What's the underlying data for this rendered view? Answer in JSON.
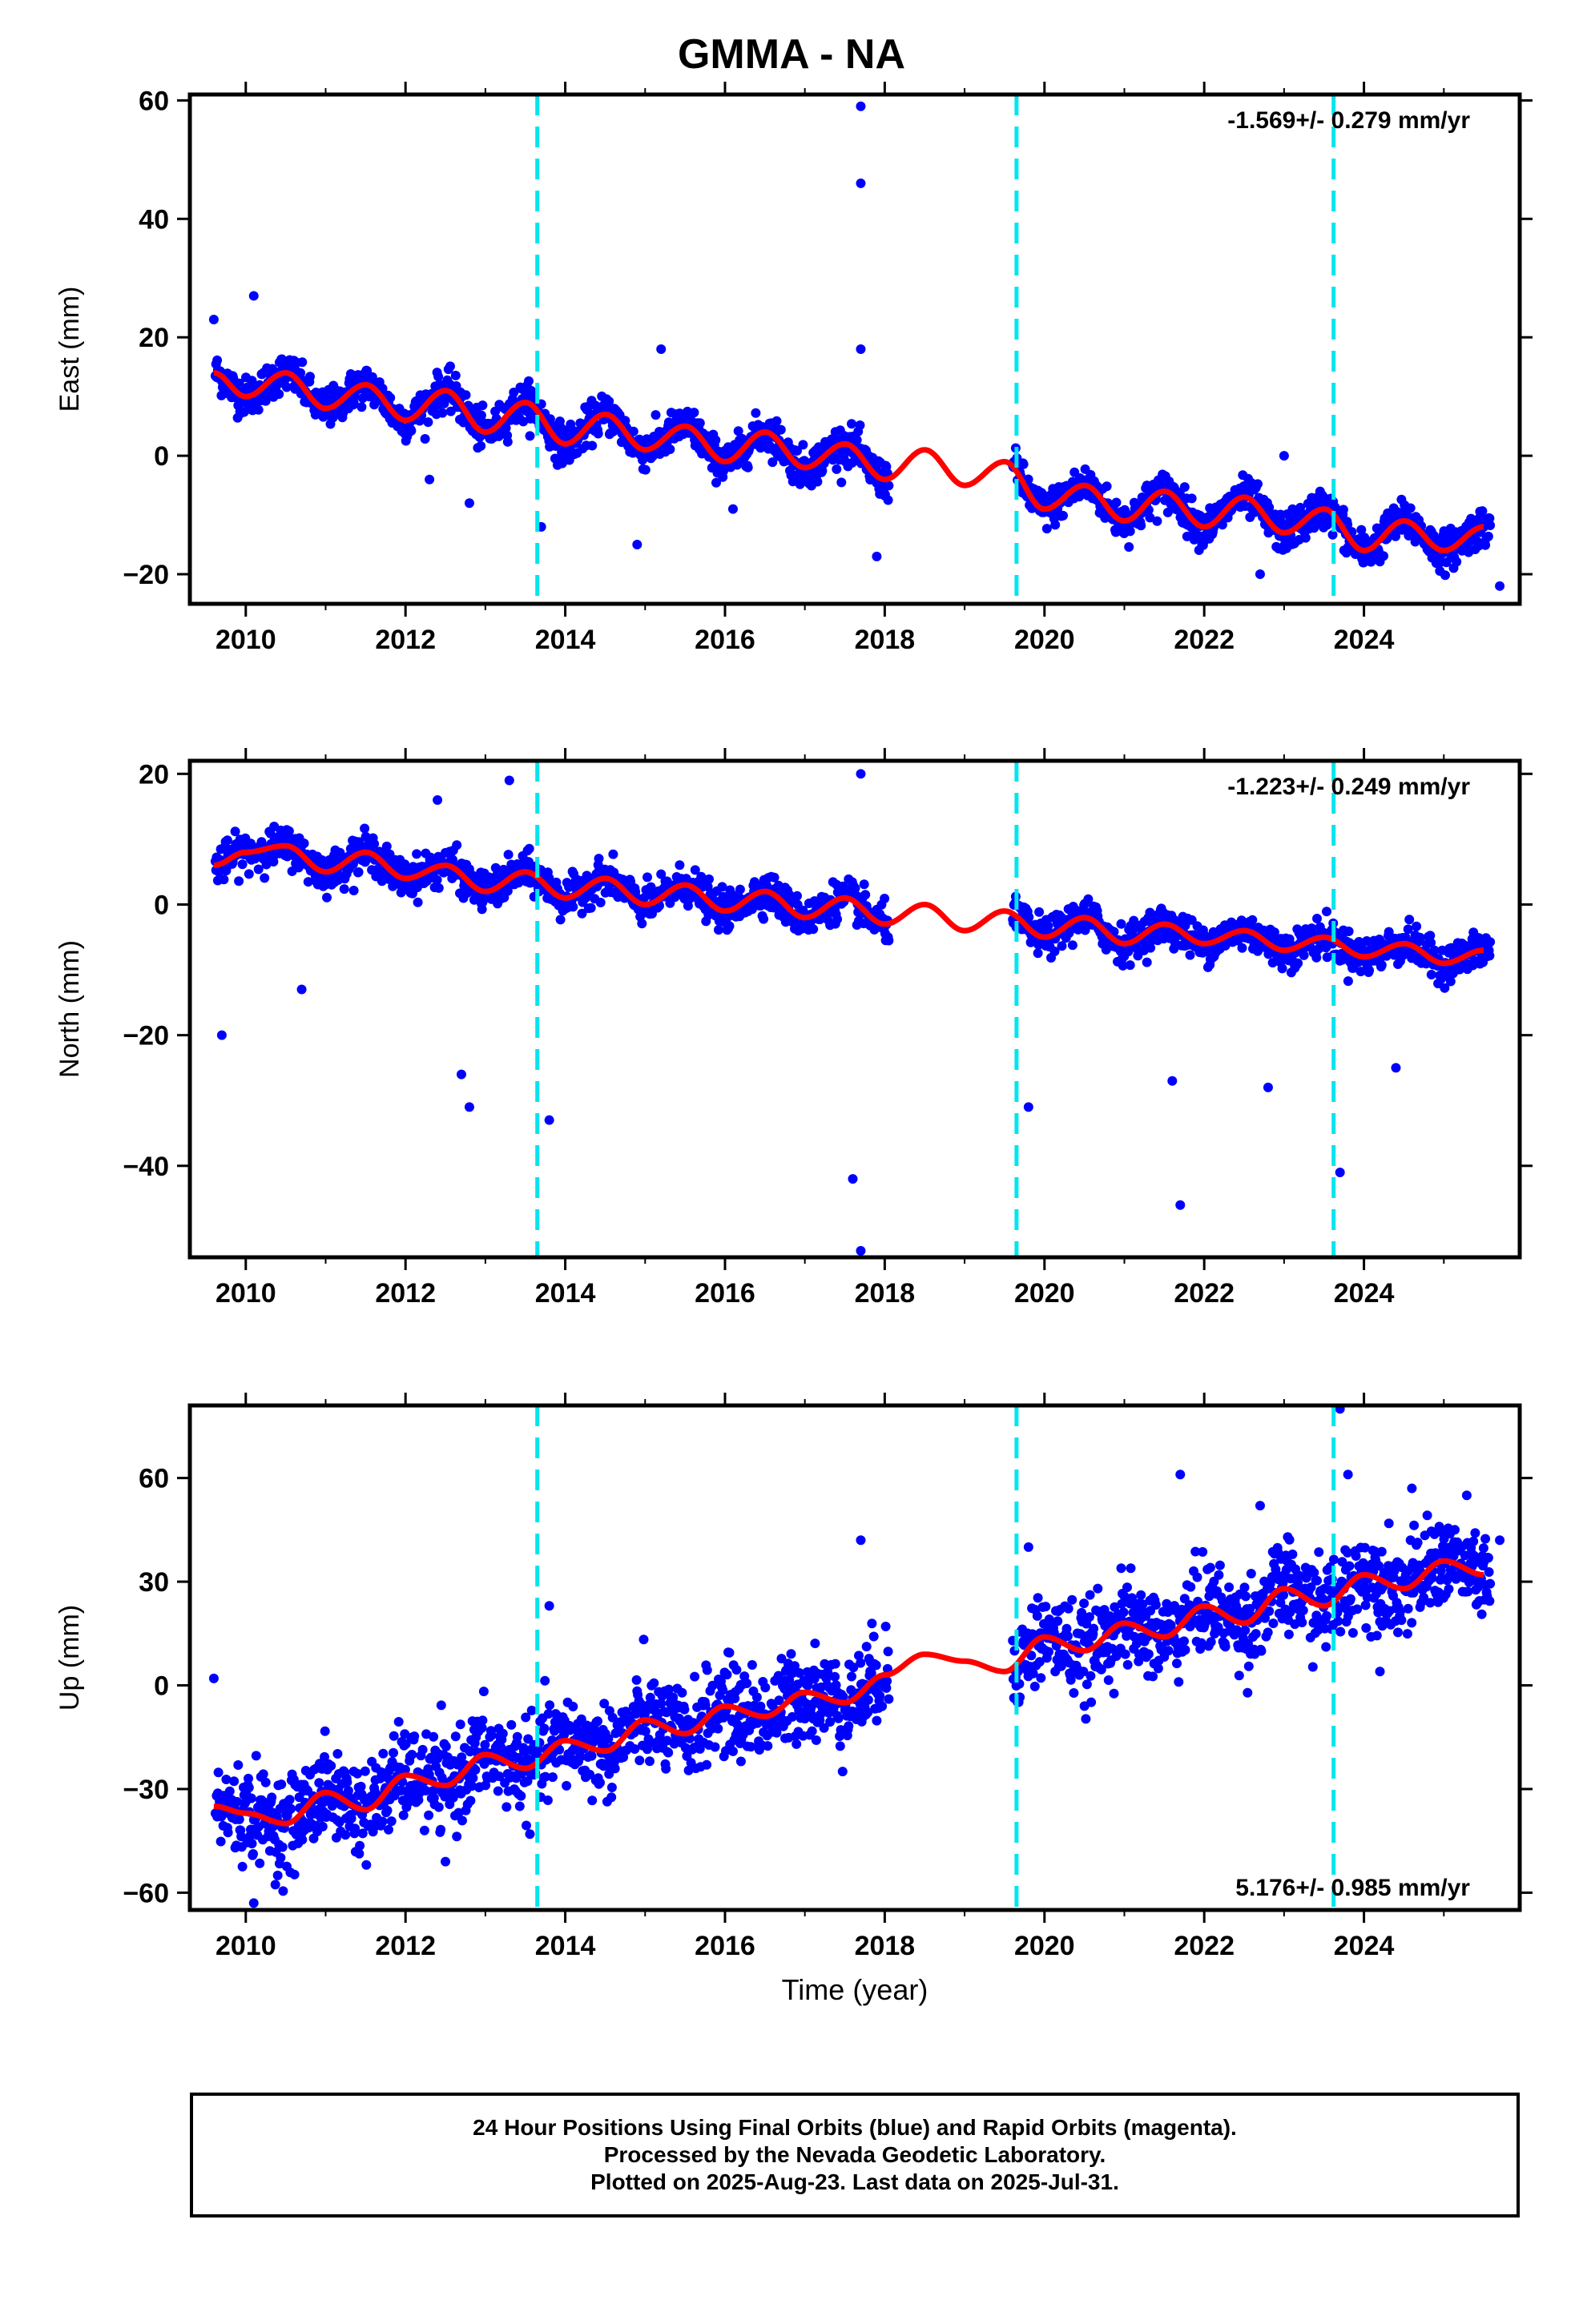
{
  "title": "GMMA - NA",
  "colors": {
    "data_points": "#0000ff",
    "model_fit": "#ff0000",
    "equipment_change": "#00e5ee"
  },
  "chart_data": [
    {
      "type": "scatter",
      "xlabel": "",
      "ylabel": "East (mm)",
      "xlim": [
        2009.3,
        2025.95
      ],
      "ylim": [
        -25,
        61
      ],
      "xticks": [
        "2010",
        "2012",
        "2014",
        "2016",
        "2018",
        "2020",
        "2022",
        "2024"
      ],
      "yticks": [
        "60",
        "40",
        "20",
        "0",
        "−20"
      ],
      "xtick_values": [
        2010,
        2012,
        2014,
        2016,
        2018,
        2020,
        2022,
        2024
      ],
      "ytick_values": [
        60,
        40,
        20,
        0,
        -20
      ],
      "annotation": "-1.569+/- 0.279 mm/yr",
      "annotation_position": "top-right",
      "vlines": [
        2013.65,
        2019.65,
        2023.62
      ],
      "model": {
        "x": [
          2009.6,
          2010.0,
          2010.5,
          2011.0,
          2011.5,
          2012.0,
          2012.5,
          2013.0,
          2013.5,
          2014.0,
          2014.5,
          2015.0,
          2015.5,
          2016.0,
          2016.5,
          2017.0,
          2017.5,
          2018.0,
          2018.5,
          2019.0,
          2019.5,
          2020.0,
          2020.5,
          2021.0,
          2021.5,
          2022.0,
          2022.5,
          2023.0,
          2023.5,
          2024.0,
          2024.5,
          2025.0,
          2025.5
        ],
        "y": [
          14,
          10,
          14,
          8,
          12,
          6,
          11,
          4,
          9,
          2,
          7,
          1,
          5,
          -1,
          4,
          -2,
          2,
          -4,
          1,
          -5,
          -1,
          -9,
          -5,
          -11,
          -6,
          -12,
          -7,
          -13,
          -9,
          -16,
          -11,
          -16,
          -12
        ]
      },
      "points": [
        {
          "x": 2017.7,
          "y": 59
        },
        {
          "x": 2017.7,
          "y": 46
        },
        {
          "x": 2010.1,
          "y": 27
        },
        {
          "x": 2009.6,
          "y": 23
        },
        {
          "x": 2017.7,
          "y": 18
        },
        {
          "x": 2015.2,
          "y": 18
        },
        {
          "x": 2013.7,
          "y": -12
        },
        {
          "x": 2014.9,
          "y": -15
        },
        {
          "x": 2017.9,
          "y": -17
        },
        {
          "x": 2022.7,
          "y": -20
        },
        {
          "x": 2025.7,
          "y": -22
        },
        {
          "x": 2024.0,
          "y": -18
        },
        {
          "x": 2012.3,
          "y": -4
        },
        {
          "x": 2012.8,
          "y": -8
        },
        {
          "x": 2016.1,
          "y": -9
        },
        {
          "x": 2023.0,
          "y": 0
        }
      ]
    },
    {
      "type": "scatter",
      "xlabel": "",
      "ylabel": "North (mm)",
      "xlim": [
        2009.3,
        2025.95
      ],
      "ylim": [
        -54,
        22
      ],
      "xticks": [
        "2010",
        "2012",
        "2014",
        "2016",
        "2018",
        "2020",
        "2022",
        "2024"
      ],
      "yticks": [
        "20",
        "0",
        "−20",
        "−40"
      ],
      "xtick_values": [
        2010,
        2012,
        2014,
        2016,
        2018,
        2020,
        2022,
        2024
      ],
      "ytick_values": [
        20,
        0,
        -20,
        -40
      ],
      "annotation": "-1.223+/- 0.249 mm/yr",
      "annotation_position": "top-right",
      "vlines": [
        2013.65,
        2019.65,
        2023.62
      ],
      "model": {
        "x": [
          2009.6,
          2010.0,
          2010.5,
          2011.0,
          2011.5,
          2012.0,
          2012.5,
          2013.0,
          2013.5,
          2014.0,
          2014.5,
          2015.0,
          2015.5,
          2016.0,
          2016.5,
          2017.0,
          2017.5,
          2018.0,
          2018.5,
          2019.0,
          2019.5,
          2020.0,
          2020.5,
          2021.0,
          2021.5,
          2022.0,
          2022.5,
          2023.0,
          2023.5,
          2024.0,
          2024.5,
          2025.0,
          2025.5
        ],
        "y": [
          6,
          8,
          9,
          5,
          8,
          4,
          6,
          2,
          5,
          1,
          4,
          0,
          3,
          -1,
          2,
          -2,
          1,
          -3,
          0,
          -4,
          -1,
          -5,
          -2,
          -6,
          -3,
          -6,
          -4,
          -7,
          -5,
          -8,
          -6,
          -9,
          -7
        ]
      },
      "points": [
        {
          "x": 2017.7,
          "y": 20
        },
        {
          "x": 2013.3,
          "y": 19
        },
        {
          "x": 2012.4,
          "y": 16
        },
        {
          "x": 2009.7,
          "y": -20
        },
        {
          "x": 2012.7,
          "y": -26
        },
        {
          "x": 2012.8,
          "y": -31
        },
        {
          "x": 2013.8,
          "y": -33
        },
        {
          "x": 2017.6,
          "y": -42
        },
        {
          "x": 2017.7,
          "y": -53
        },
        {
          "x": 2019.8,
          "y": -31
        },
        {
          "x": 2021.7,
          "y": -46
        },
        {
          "x": 2021.6,
          "y": -27
        },
        {
          "x": 2022.8,
          "y": -28
        },
        {
          "x": 2023.7,
          "y": -41
        },
        {
          "x": 2024.4,
          "y": -25
        },
        {
          "x": 2010.7,
          "y": -13
        }
      ]
    },
    {
      "type": "scatter",
      "xlabel": "Time (year)",
      "ylabel": "Up (mm)",
      "xlim": [
        2009.3,
        2025.95
      ],
      "ylim": [
        -65,
        81
      ],
      "xticks": [
        "2010",
        "2012",
        "2014",
        "2016",
        "2018",
        "2020",
        "2022",
        "2024"
      ],
      "yticks": [
        "60",
        "30",
        "0",
        "−30",
        "−60"
      ],
      "xtick_values": [
        2010,
        2012,
        2014,
        2016,
        2018,
        2020,
        2022,
        2024
      ],
      "ytick_values": [
        60,
        30,
        0,
        -30,
        -60
      ],
      "annotation": "5.176+/- 0.985 mm/yr",
      "annotation_position": "bottom-right",
      "vlines": [
        2013.65,
        2019.65,
        2023.62
      ],
      "model": {
        "x": [
          2009.6,
          2010.0,
          2010.5,
          2011.0,
          2011.5,
          2012.0,
          2012.5,
          2013.0,
          2013.5,
          2014.0,
          2014.5,
          2015.0,
          2015.5,
          2016.0,
          2016.5,
          2017.0,
          2017.5,
          2018.0,
          2018.5,
          2019.0,
          2019.5,
          2020.0,
          2020.5,
          2021.0,
          2021.5,
          2022.0,
          2022.5,
          2023.0,
          2023.5,
          2024.0,
          2024.5,
          2025.0,
          2025.5
        ],
        "y": [
          -35,
          -37,
          -40,
          -31,
          -36,
          -26,
          -29,
          -20,
          -24,
          -16,
          -19,
          -10,
          -14,
          -6,
          -9,
          -2,
          -5,
          3,
          9,
          7,
          4,
          14,
          10,
          18,
          14,
          23,
          18,
          28,
          23,
          32,
          28,
          36,
          32
        ]
      },
      "points": [
        {
          "x": 2023.7,
          "y": 80
        },
        {
          "x": 2021.7,
          "y": 61
        },
        {
          "x": 2023.8,
          "y": 61
        },
        {
          "x": 2024.6,
          "y": 57
        },
        {
          "x": 2022.7,
          "y": 52
        },
        {
          "x": 2017.7,
          "y": 42
        },
        {
          "x": 2019.8,
          "y": 40
        },
        {
          "x": 2009.6,
          "y": 2
        },
        {
          "x": 2010.1,
          "y": -63
        },
        {
          "x": 2010.4,
          "y": -55
        },
        {
          "x": 2012.5,
          "y": -51
        },
        {
          "x": 2013.8,
          "y": 23
        },
        {
          "x": 2024.2,
          "y": 4
        },
        {
          "x": 2025.7,
          "y": 42
        },
        {
          "x": 2020.5,
          "y": -6
        },
        {
          "x": 2016.2,
          "y": -22
        }
      ]
    }
  ],
  "footer": {
    "line1": "24 Hour Positions Using Final Orbits (blue) and Rapid Orbits (magenta).",
    "line2": "Processed by the Nevada Geodetic Laboratory.",
    "line3": "Plotted on 2025-Aug-23. Last data on 2025-Jul-31."
  }
}
